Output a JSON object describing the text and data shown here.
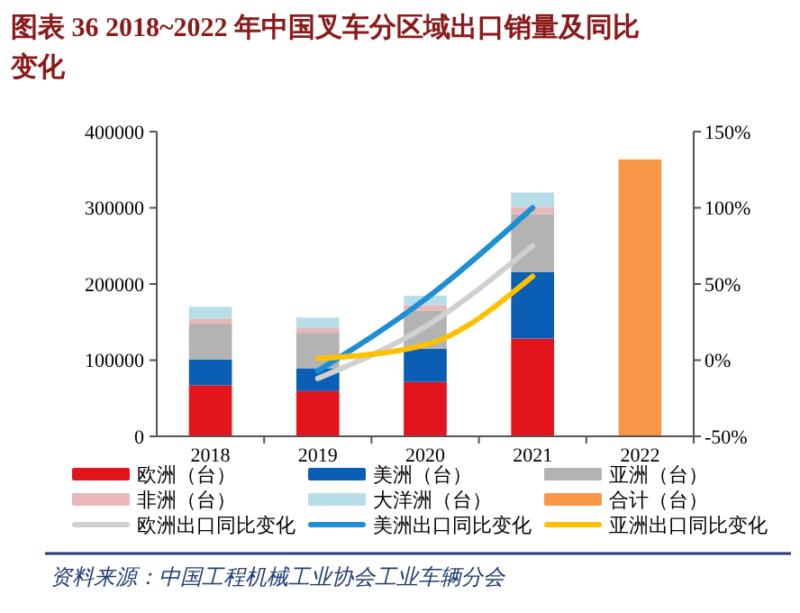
{
  "chart_data": {
    "type": "bar",
    "stacked": true,
    "title": "图表 36   2018~2022 年中国叉车分区域出口销量及同比变化",
    "categories": [
      "2018",
      "2019",
      "2020",
      "2021",
      "2022"
    ],
    "series": [
      {
        "name": "欧洲（台）",
        "color": "#e3141b",
        "values": [
          67000,
          59400,
          71300,
          128300,
          null
        ]
      },
      {
        "name": "美洲（台）",
        "color": "#0a5fb4",
        "values": [
          34000,
          30000,
          43700,
          87100,
          null
        ]
      },
      {
        "name": "亚洲（台）",
        "color": "#b3b3b3",
        "values": [
          47000,
          46500,
          49800,
          76100,
          null
        ]
      },
      {
        "name": "非洲（台）",
        "color": "#e8b7b8",
        "values": [
          6500,
          6500,
          7200,
          9500,
          null
        ]
      },
      {
        "name": "大洋洲（台）",
        "color": "#b7dde8",
        "values": [
          15500,
          13500,
          12500,
          19000,
          null
        ]
      },
      {
        "name": "合计（台）",
        "color": "#f79646",
        "values": [
          null,
          null,
          null,
          null,
          363500
        ]
      },
      {
        "name": "欧洲出口同比变化",
        "type": "line",
        "axis": "y2",
        "color": "#d0d0d0",
        "values": [
          null,
          -12,
          22,
          75,
          null
        ]
      },
      {
        "name": "美洲出口同比变化",
        "type": "line",
        "axis": "y2",
        "color": "#1e8fd5",
        "values": [
          null,
          -7,
          40,
          100,
          null
        ]
      },
      {
        "name": "亚洲出口同比变化",
        "type": "line",
        "axis": "y2",
        "color": "#ffc000",
        "values": [
          null,
          1,
          10,
          55,
          null
        ]
      }
    ],
    "ylim": [
      0,
      400000
    ],
    "yticks": [
      0,
      100000,
      200000,
      300000,
      400000
    ],
    "y2lim": [
      -50,
      150
    ],
    "y2ticks": [
      {
        "value": -50,
        "label": "-50%"
      },
      {
        "value": 0,
        "label": "0%"
      },
      {
        "value": 50,
        "label": "50%"
      },
      {
        "value": 100,
        "label": "100%"
      },
      {
        "value": 150,
        "label": "150%"
      }
    ],
    "legend": "bottom",
    "grid": false,
    "annotations": [
      "资料来源：中国工程机械工业协会工业车辆分会"
    ]
  }
}
